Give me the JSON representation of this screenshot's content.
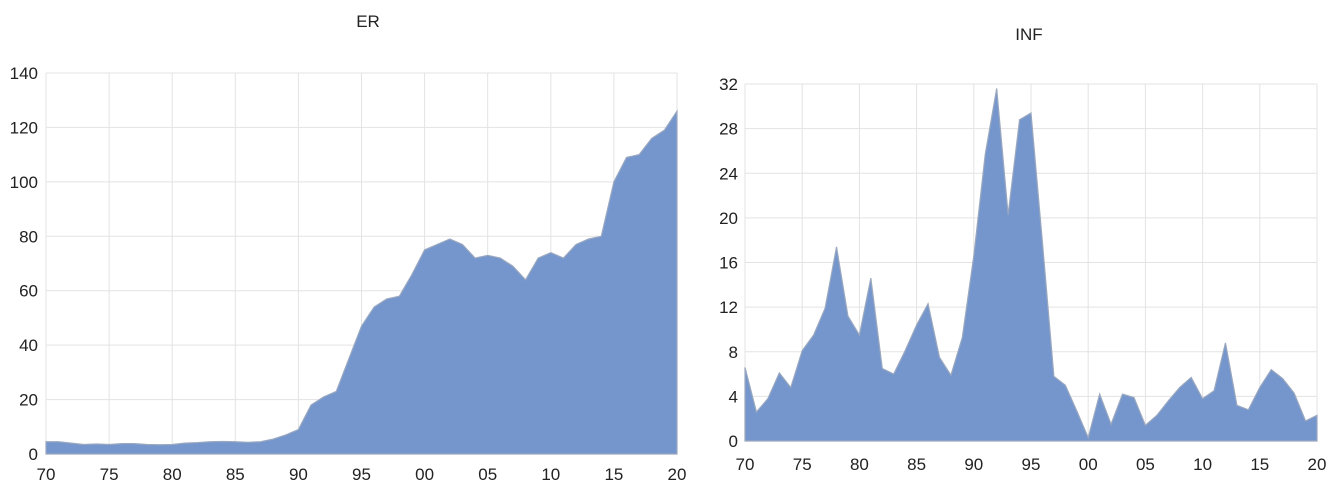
{
  "chart_data": [
    {
      "type": "area",
      "title": "ER",
      "x": [
        "1970",
        "1971",
        "1972",
        "1973",
        "1974",
        "1975",
        "1976",
        "1977",
        "1978",
        "1979",
        "1980",
        "1981",
        "1982",
        "1983",
        "1984",
        "1985",
        "1986",
        "1987",
        "1988",
        "1989",
        "1990",
        "1991",
        "1992",
        "1993",
        "1994",
        "1995",
        "1996",
        "1997",
        "1998",
        "1999",
        "2000",
        "2001",
        "2002",
        "2003",
        "2004",
        "2005",
        "2006",
        "2007",
        "2008",
        "2009",
        "2010",
        "2011",
        "2012",
        "2013",
        "2014",
        "2015",
        "2016",
        "2017",
        "2018",
        "2019",
        "2020"
      ],
      "values": [
        4.5,
        4.5,
        4,
        3.5,
        3.7,
        3.5,
        3.8,
        3.8,
        3.5,
        3.4,
        3.5,
        4,
        4.2,
        4.5,
        4.6,
        4.5,
        4.3,
        4.5,
        5.5,
        7,
        9,
        18,
        21,
        23,
        35,
        47,
        54,
        57,
        58,
        66,
        75,
        77,
        79,
        77,
        72,
        73,
        72,
        69,
        64,
        72,
        74,
        72,
        77,
        79,
        80,
        100,
        109,
        110,
        116,
        119,
        126
      ],
      "ylim": [
        0,
        140
      ],
      "yticks": [
        "0",
        "20",
        "40",
        "60",
        "80",
        "100",
        "120",
        "140"
      ],
      "xtick_labels": [
        "70",
        "75",
        "80",
        "85",
        "90",
        "95",
        "00",
        "05",
        "10",
        "15",
        "20"
      ],
      "grid": true
    },
    {
      "type": "area",
      "title": "INF",
      "x": [
        "1970",
        "1971",
        "1972",
        "1973",
        "1974",
        "1975",
        "1976",
        "1977",
        "1978",
        "1979",
        "1980",
        "1981",
        "1982",
        "1983",
        "1984",
        "1985",
        "1986",
        "1987",
        "1988",
        "1989",
        "1990",
        "1991",
        "1992",
        "1993",
        "1994",
        "1995",
        "1996",
        "1997",
        "1998",
        "1999",
        "2000",
        "2001",
        "2002",
        "2003",
        "2004",
        "2005",
        "2006",
        "2007",
        "2008",
        "2009",
        "2010",
        "2011",
        "2012",
        "2013",
        "2014",
        "2015",
        "2016",
        "2017",
        "2018",
        "2019",
        "2020"
      ],
      "values": [
        6.6,
        2.6,
        3.8,
        6.1,
        4.8,
        8.1,
        9.5,
        11.9,
        17.4,
        11.2,
        9.5,
        14.6,
        6.5,
        6,
        8.1,
        10.4,
        12.3,
        7.5,
        5.9,
        9.3,
        16.6,
        25.7,
        31.6,
        20.3,
        28.8,
        29.4,
        17.8,
        5.8,
        5,
        2.7,
        0.3,
        4.2,
        1.5,
        4.2,
        3.9,
        1.4,
        2.3,
        3.6,
        4.8,
        5.7,
        3.8,
        4.5,
        8.8,
        3.2,
        2.8,
        4.8,
        6.4,
        5.6,
        4.3,
        1.8,
        2.3
      ],
      "ylim": [
        0,
        32
      ],
      "yticks": [
        "0",
        "4",
        "8",
        "12",
        "16",
        "20",
        "24",
        "28",
        "32"
      ],
      "xtick_labels": [
        "70",
        "75",
        "80",
        "85",
        "90",
        "95",
        "00",
        "05",
        "10",
        "15",
        "20"
      ],
      "grid": true
    }
  ],
  "colors": {
    "area_fill": "#7596cc",
    "area_stroke": "#9aa8bf",
    "grid": "#e3e3e3"
  }
}
